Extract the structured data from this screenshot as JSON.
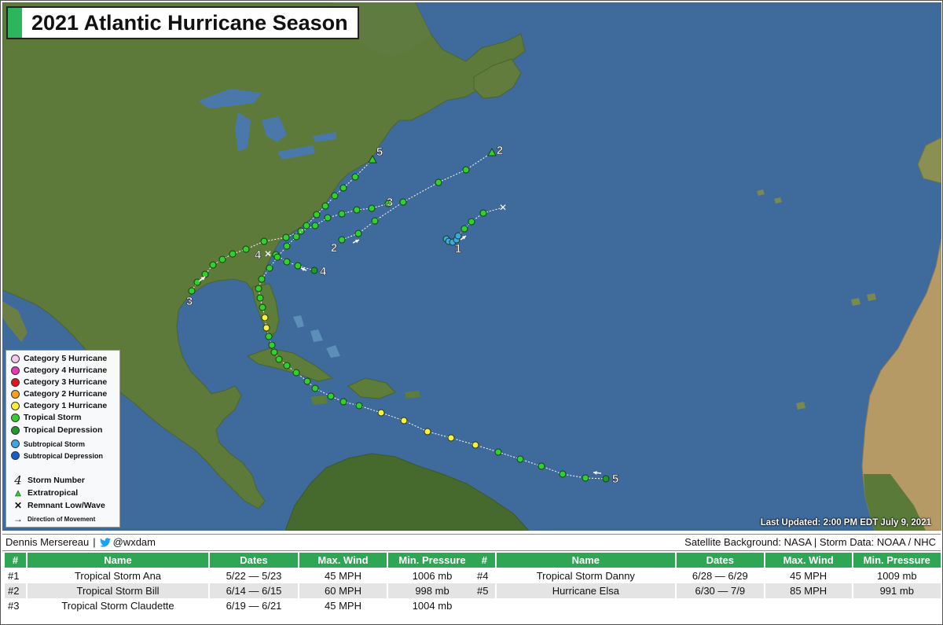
{
  "title": "2021 Atlantic Hurricane Season",
  "last_updated": "Last Updated: 2:00 PM EDT July 9, 2021",
  "credits": {
    "author": "Dennis Mersereau",
    "separator": "|",
    "twitter": "@wxdam",
    "sources": "Satellite Background: NASA | Storm Data: NOAA / NHC"
  },
  "colors": {
    "tropical_storm": "#2fd12f",
    "tropical_depression": "#1d9a2a",
    "category_1": "#ffef3a",
    "category_2": "#ff9f1a",
    "category_3": "#e8141c",
    "category_4": "#e838b8",
    "category_5": "#f5c8f0",
    "subtropical_storm": "#3aa8e8",
    "subtropical_depression": "#1260d8",
    "header_green": "#2ea653",
    "ocean": "#3f6a9c",
    "land": "#5c7a3a"
  },
  "legend": {
    "categories": [
      {
        "label": "Category 5 Hurricane",
        "color": "#f5c8f0"
      },
      {
        "label": "Category 4 Hurricane",
        "color": "#e838b8"
      },
      {
        "label": "Category 3 Hurricane",
        "color": "#e8141c"
      },
      {
        "label": "Category 2 Hurricane",
        "color": "#ff9f1a"
      },
      {
        "label": "Category 1 Hurricane",
        "color": "#ffef3a"
      },
      {
        "label": "Tropical Storm",
        "color": "#2fd12f"
      },
      {
        "label": "Tropical Depression",
        "color": "#1d9a2a"
      }
    ],
    "subtropical": [
      {
        "label": "Subtropical Storm",
        "color": "#3aa8e8"
      },
      {
        "label": "Subtropical Depression",
        "color": "#1260d8"
      }
    ],
    "symbols": [
      {
        "glyph": "4",
        "icon": "storm-number-icon",
        "label": "Storm Number"
      },
      {
        "glyph": "▲",
        "icon": "extratropical-triangle-icon",
        "label": "Extratropical"
      },
      {
        "glyph": "✕",
        "icon": "remnant-x-icon",
        "label": "Remnant Low/Wave"
      },
      {
        "glyph": "→",
        "icon": "direction-arrow-icon",
        "label": "Direction of Movement"
      }
    ]
  },
  "storm_labels": [
    "1",
    "2",
    "3",
    "4",
    "5"
  ],
  "table": {
    "headers": [
      "#",
      "Name",
      "Dates",
      "Max. Wind",
      "Min. Pressure"
    ],
    "left_rows": [
      {
        "num": "#1",
        "name": "Tropical Storm Ana",
        "dates": "5/22 — 5/23",
        "wind": "45 MPH",
        "pressure": "1006 mb"
      },
      {
        "num": "#2",
        "name": "Tropical Storm Bill",
        "dates": "6/14 — 6/15",
        "wind": "60 MPH",
        "pressure": "998 mb"
      },
      {
        "num": "#3",
        "name": "Tropical Storm Claudette",
        "dates": "6/19 — 6/21",
        "wind": "45 MPH",
        "pressure": "1004 mb"
      }
    ],
    "right_rows": [
      {
        "num": "#4",
        "name": "Tropical Storm Danny",
        "dates": "6/28 — 6/29",
        "wind": "45 MPH",
        "pressure": "1009 mb"
      },
      {
        "num": "#5",
        "name": "Hurricane Elsa",
        "dates": "6/30 — 7/9",
        "wind": "85 MPH",
        "pressure": "991 mb"
      }
    ]
  }
}
